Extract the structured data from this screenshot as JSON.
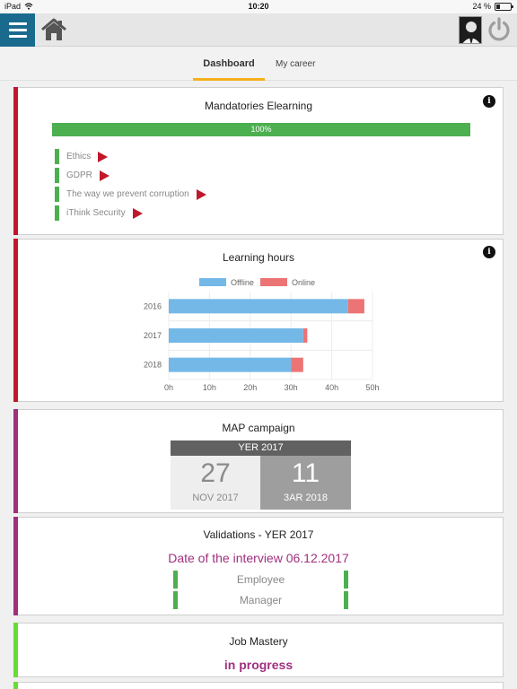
{
  "status_bar": {
    "device": "iPad",
    "time": "10:20",
    "battery": "24 %",
    "battery_level": 0.24
  },
  "tabs": {
    "dashboard": "Dashboard",
    "career": "My career"
  },
  "colors": {
    "menu": "#1a6a8e",
    "red_accent": "#c0182a",
    "purple_accent": "#a0307e",
    "green_accent": "#66dd33",
    "offline": "#74b8e8",
    "online": "#ec7474",
    "progress": "#4caf50"
  },
  "elearning": {
    "title": "Mandatories Elearning",
    "progress_label": "100%",
    "progress": 1.0,
    "courses": [
      {
        "label": "Ethics"
      },
      {
        "label": "GDPR"
      },
      {
        "label": "The way we prevent corruption"
      },
      {
        "label": "iThink Security"
      }
    ]
  },
  "learning_hours": {
    "title": "Learning hours"
  },
  "chart_data": {
    "type": "bar",
    "orientation": "horizontal",
    "stacked": true,
    "categories": [
      "2016",
      "2017",
      "2018"
    ],
    "series": [
      {
        "name": "Offline",
        "values": [
          44,
          33,
          30
        ]
      },
      {
        "name": "Online",
        "values": [
          4,
          1,
          3
        ]
      }
    ],
    "x_ticks": [
      "0h",
      "10h",
      "20h",
      "30h",
      "40h",
      "50h"
    ],
    "xlim": [
      0,
      50
    ],
    "legend": "top",
    "grid": true
  },
  "map_campaign": {
    "title": "MAP campaign",
    "header": "YER 2017",
    "start_day": "27",
    "start_month": "NOV 2017",
    "end_day": "11",
    "end_month": "3AR 2018"
  },
  "validations": {
    "title": "Validations - YER 2017",
    "interview": "Date of the interview 06.12.2017",
    "rows": [
      {
        "label": "Employee"
      },
      {
        "label": "Manager"
      }
    ]
  },
  "job_mastery": {
    "title": "Job Mastery",
    "status": "in progress"
  }
}
